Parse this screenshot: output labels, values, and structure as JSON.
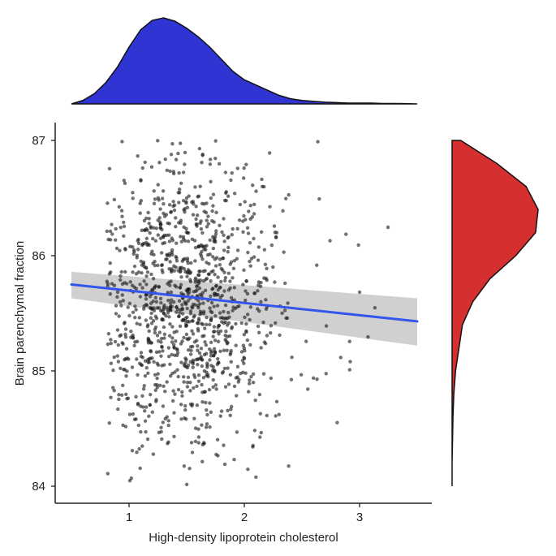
{
  "chart_data": {
    "type": "scatter",
    "title": "",
    "xlabel": "High-density lipoprotein cholesterol",
    "ylabel": "Brain parenchymal fraction",
    "xlim": [
      0.5,
      3.5
    ],
    "ylim": [
      84.0,
      87.0
    ],
    "x_ticks": [
      1,
      2,
      3
    ],
    "y_ticks": [
      84,
      85,
      86,
      87
    ],
    "x_tick_labels": [
      "1",
      "2",
      "3"
    ],
    "y_tick_labels": [
      "84",
      "85",
      "86",
      "87"
    ],
    "grid": false,
    "legend": "none",
    "colors": {
      "points": "#1a1a1a",
      "regression_line": "#3355ee",
      "confidence_band": "#c8c8c8",
      "x_density_fill": "#2f34d3",
      "y_density_fill": "#d62f2f",
      "axis": "#222222"
    },
    "scatter_summary": {
      "n_points": 1200,
      "x_mean": 1.45,
      "x_sd": 0.38,
      "y_mean": 85.55,
      "y_sd": 0.62,
      "x_range": [
        0.8,
        3.3
      ],
      "y_range": [
        84.0,
        87.0
      ]
    },
    "regression": {
      "x": [
        0.5,
        3.5
      ],
      "y": [
        85.75,
        85.43
      ],
      "ci_lower": [
        85.63,
        85.22
      ],
      "ci_upper": [
        85.86,
        85.63
      ]
    },
    "marginal_x_density": {
      "x": [
        0.5,
        0.6,
        0.7,
        0.8,
        0.9,
        1.0,
        1.1,
        1.2,
        1.3,
        1.4,
        1.5,
        1.6,
        1.7,
        1.8,
        1.9,
        2.0,
        2.1,
        2.2,
        2.3,
        2.4,
        2.5,
        2.6,
        2.7,
        2.8,
        2.9,
        3.0,
        3.1,
        3.2,
        3.3,
        3.4,
        3.5
      ],
      "density": [
        0.0,
        0.04,
        0.12,
        0.25,
        0.43,
        0.66,
        0.86,
        0.97,
        1.0,
        0.96,
        0.88,
        0.78,
        0.66,
        0.52,
        0.38,
        0.28,
        0.22,
        0.16,
        0.1,
        0.06,
        0.04,
        0.03,
        0.02,
        0.015,
        0.01,
        0.01,
        0.01,
        0.005,
        0.005,
        0.003,
        0.0
      ]
    },
    "marginal_y_density": {
      "y": [
        84.0,
        84.2,
        84.4,
        84.6,
        84.8,
        85.0,
        85.2,
        85.4,
        85.6,
        85.8,
        86.0,
        86.2,
        86.4,
        86.6,
        86.8,
        87.0
      ],
      "density": [
        0.0,
        0.0,
        0.005,
        0.01,
        0.02,
        0.04,
        0.08,
        0.12,
        0.24,
        0.44,
        0.74,
        0.97,
        1.0,
        0.86,
        0.52,
        0.1
      ]
    }
  }
}
